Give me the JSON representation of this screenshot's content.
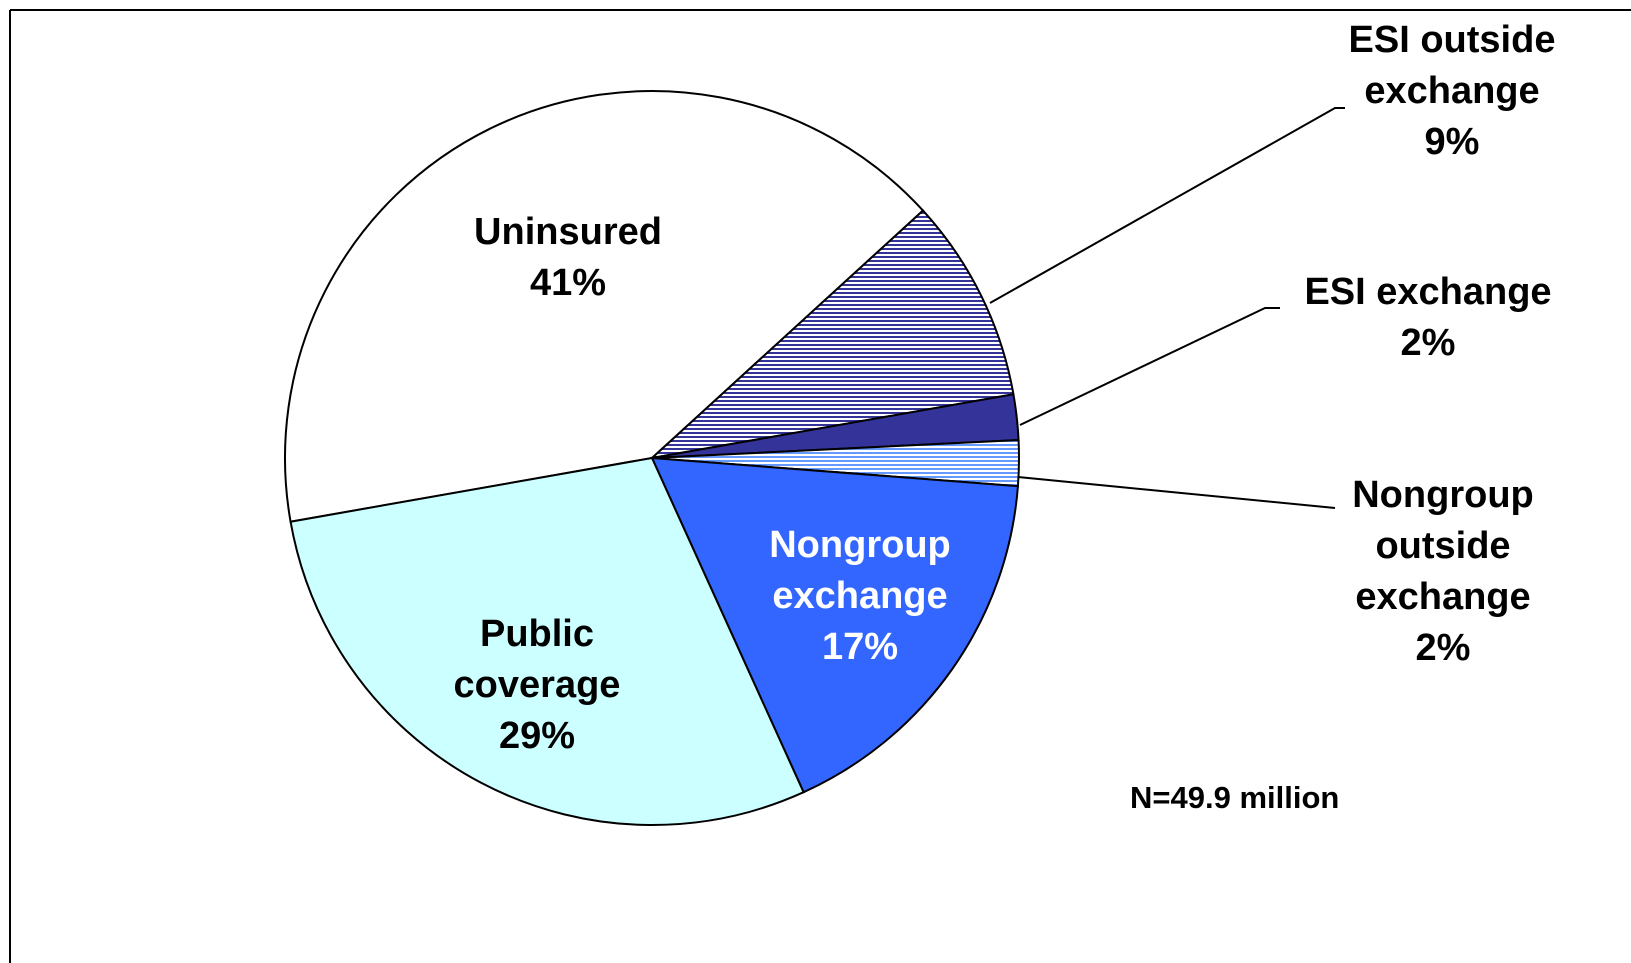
{
  "chart_data": {
    "type": "pie",
    "categories": [
      "Uninsured",
      "ESI outside exchange",
      "ESI exchange",
      "Nongroup outside exchange",
      "Nongroup exchange",
      "Public coverage"
    ],
    "values": [
      41,
      9,
      2,
      2,
      17,
      29
    ],
    "value_labels": [
      "41%",
      "9%",
      "2%",
      "2%",
      "17%",
      "29%"
    ],
    "colors": [
      "#ffffff",
      "#333399",
      "#333399",
      "#6699ff",
      "#3366ff",
      "#ccffff"
    ],
    "hatched": [
      false,
      true,
      false,
      true,
      false,
      false
    ],
    "note": "N=49.9 million"
  }
}
